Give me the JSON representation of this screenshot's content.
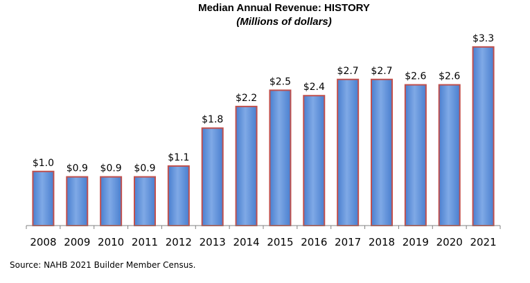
{
  "colors": {
    "bar_fill": "#4a7fcf",
    "bar_highlight": "#7fa9e6",
    "bar_border": "#c0504d",
    "axis": "#808080"
  },
  "source": "Source: NAHB 2021 Builder Member Census.",
  "chart_data": {
    "type": "bar",
    "title": "Median Annual Revenue: HISTORY",
    "subtitle": "(Millions of dollars)",
    "xlabel": "",
    "ylabel": "",
    "categories": [
      "2008",
      "2009",
      "2010",
      "2011",
      "2012",
      "2013",
      "2014",
      "2015",
      "2016",
      "2017",
      "2018",
      "2019",
      "2020",
      "2021"
    ],
    "values": [
      1.0,
      0.9,
      0.9,
      0.9,
      1.1,
      1.8,
      2.2,
      2.5,
      2.4,
      2.7,
      2.7,
      2.6,
      2.6,
      3.3
    ],
    "data_labels": [
      "$1.0",
      "$0.9",
      "$0.9",
      "$0.9",
      "$1.1",
      "$1.8",
      "$2.2",
      "$2.5",
      "$2.4",
      "$2.7",
      "$2.7",
      "$2.6",
      "$2.6",
      "$3.3"
    ],
    "ylim": [
      0,
      3.4
    ],
    "grid": false,
    "legend": "none"
  }
}
